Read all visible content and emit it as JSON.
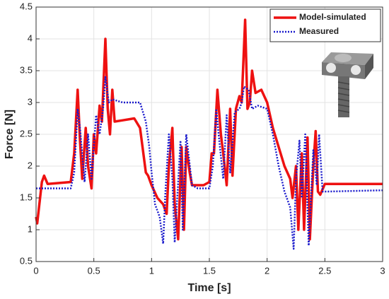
{
  "chart_data": {
    "type": "line",
    "xlabel": "Time [s]",
    "ylabel": "Force [N]",
    "xlim": [
      0,
      3
    ],
    "xticks": [
      0,
      0.5,
      1,
      1.5,
      2,
      2.5,
      3
    ],
    "ylim": [
      0.5,
      4.5
    ],
    "yticks": [
      0.5,
      1,
      1.5,
      2,
      2.5,
      3,
      3.5,
      4,
      4.5
    ],
    "grid": true,
    "legend": "upper right",
    "series": [
      {
        "name": "Model-simulated",
        "color": "#ee1111",
        "style": "solid",
        "x": [
          0,
          0.01,
          0.05,
          0.07,
          0.1,
          0.3,
          0.33,
          0.36,
          0.38,
          0.4,
          0.43,
          0.45,
          0.48,
          0.5,
          0.52,
          0.55,
          0.57,
          0.6,
          0.62,
          0.64,
          0.66,
          0.68,
          0.75,
          0.85,
          0.9,
          0.95,
          0.97,
          1.0,
          1.05,
          1.1,
          1.13,
          1.15,
          1.18,
          1.2,
          1.23,
          1.26,
          1.28,
          1.3,
          1.33,
          1.35,
          1.45,
          1.5,
          1.52,
          1.54,
          1.57,
          1.6,
          1.62,
          1.65,
          1.68,
          1.7,
          1.73,
          1.76,
          1.78,
          1.81,
          1.83,
          1.85,
          1.87,
          1.9,
          1.95,
          2.0,
          2.05,
          2.1,
          2.15,
          2.2,
          2.22,
          2.25,
          2.27,
          2.3,
          2.32,
          2.35,
          2.37,
          2.4,
          2.42,
          2.44,
          2.46,
          2.5,
          3.0
        ],
        "values": [
          1.2,
          1.1,
          1.75,
          1.85,
          1.72,
          1.75,
          2.2,
          3.2,
          2.4,
          1.8,
          2.6,
          2.0,
          1.65,
          2.5,
          2.2,
          2.95,
          2.7,
          4.0,
          2.9,
          2.5,
          3.2,
          2.7,
          2.72,
          2.75,
          2.6,
          1.9,
          1.85,
          1.7,
          1.5,
          1.4,
          1.25,
          2.0,
          2.6,
          1.4,
          0.85,
          2.3,
          1.0,
          2.3,
          1.9,
          1.7,
          1.7,
          1.75,
          2.2,
          2.2,
          3.2,
          2.5,
          2.2,
          1.7,
          2.9,
          1.85,
          2.9,
          3.1,
          3.0,
          4.3,
          2.9,
          3.0,
          3.5,
          3.15,
          3.2,
          3.0,
          2.6,
          2.3,
          2.0,
          1.8,
          1.5,
          2.0,
          1.0,
          2.2,
          1.0,
          2.45,
          0.85,
          2.0,
          2.55,
          1.6,
          1.55,
          1.72,
          1.72
        ]
      },
      {
        "name": "Measured",
        "color": "#1a1acc",
        "style": "dotted",
        "x": [
          0,
          0.3,
          0.33,
          0.36,
          0.38,
          0.42,
          0.45,
          0.48,
          0.52,
          0.55,
          0.58,
          0.6,
          0.63,
          0.66,
          0.75,
          0.9,
          0.95,
          0.98,
          1.0,
          1.03,
          1.07,
          1.1,
          1.12,
          1.15,
          1.18,
          1.2,
          1.23,
          1.25,
          1.27,
          1.3,
          1.35,
          1.4,
          1.5,
          1.53,
          1.56,
          1.58,
          1.62,
          1.65,
          1.68,
          1.72,
          1.76,
          1.78,
          1.8,
          1.84,
          1.87,
          1.92,
          2.0,
          2.05,
          2.1,
          2.15,
          2.2,
          2.23,
          2.25,
          2.28,
          2.3,
          2.33,
          2.36,
          2.4,
          2.43,
          2.45,
          2.48,
          2.52,
          3.0
        ],
        "values": [
          1.65,
          1.65,
          1.9,
          2.9,
          2.6,
          1.75,
          2.5,
          1.8,
          2.8,
          2.5,
          2.9,
          3.4,
          3.0,
          3.05,
          3.0,
          3.0,
          2.7,
          2.3,
          1.9,
          1.4,
          1.2,
          0.78,
          1.6,
          2.5,
          1.8,
          0.8,
          1.75,
          2.4,
          1.0,
          2.5,
          1.7,
          1.65,
          1.65,
          2.0,
          2.9,
          2.5,
          1.8,
          2.8,
          1.9,
          2.85,
          2.9,
          3.0,
          3.25,
          3.2,
          2.9,
          2.95,
          2.9,
          2.5,
          2.0,
          1.6,
          1.35,
          0.7,
          1.8,
          2.4,
          1.5,
          2.5,
          0.75,
          2.25,
          1.7,
          2.5,
          1.6,
          1.6,
          1.62
        ]
      }
    ]
  }
}
